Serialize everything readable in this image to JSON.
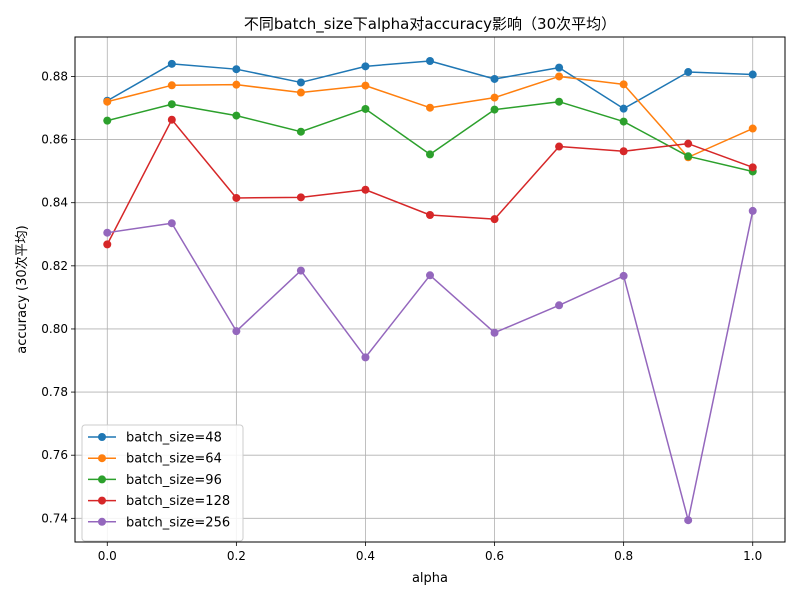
{
  "chart_data": {
    "type": "line",
    "title": "不同batch_size下alpha对accuracy影响（30次平均）",
    "xlabel": "alpha",
    "ylabel": "accuracy (30次平均)",
    "xlim": [
      -0.05,
      1.05
    ],
    "ylim": [
      0.7325,
      0.8925
    ],
    "xticks": [
      0.0,
      0.2,
      0.4,
      0.6,
      0.8,
      1.0
    ],
    "xtick_labels": [
      "0.0",
      "0.2",
      "0.4",
      "0.6",
      "0.8",
      "1.0"
    ],
    "yticks": [
      0.74,
      0.76,
      0.78,
      0.8,
      0.82,
      0.84,
      0.86,
      0.88
    ],
    "ytick_labels": [
      "0.74",
      "0.76",
      "0.78",
      "0.80",
      "0.82",
      "0.84",
      "0.86",
      "0.88"
    ],
    "grid": true,
    "legend_position": "lower-left",
    "x": [
      0.0,
      0.1,
      0.2,
      0.3,
      0.4,
      0.5,
      0.6,
      0.7,
      0.8,
      0.9,
      1.0
    ],
    "series": [
      {
        "name": "batch_size=48",
        "color": "#1f77b4",
        "values": [
          0.8723,
          0.884,
          0.8823,
          0.8781,
          0.8832,
          0.8849,
          0.8792,
          0.8828,
          0.8698,
          0.8814,
          0.8806
        ]
      },
      {
        "name": "batch_size=64",
        "color": "#ff7f0e",
        "values": [
          0.872,
          0.8772,
          0.8774,
          0.8749,
          0.8771,
          0.8701,
          0.8733,
          0.88,
          0.8775,
          0.8544,
          0.8635
        ]
      },
      {
        "name": "batch_size=96",
        "color": "#2ca02c",
        "values": [
          0.866,
          0.8712,
          0.8676,
          0.8625,
          0.8697,
          0.8553,
          0.8695,
          0.872,
          0.8657,
          0.8547,
          0.8499
        ]
      },
      {
        "name": "batch_size=128",
        "color": "#d62728",
        "values": [
          0.8268,
          0.8663,
          0.8415,
          0.8417,
          0.8441,
          0.8361,
          0.8348,
          0.8578,
          0.8563,
          0.8587,
          0.8512
        ]
      },
      {
        "name": "batch_size=256",
        "color": "#9467bd",
        "values": [
          0.8305,
          0.8335,
          0.7993,
          0.8185,
          0.791,
          0.817,
          0.7988,
          0.8075,
          0.8168,
          0.7394,
          0.8374
        ]
      }
    ]
  }
}
